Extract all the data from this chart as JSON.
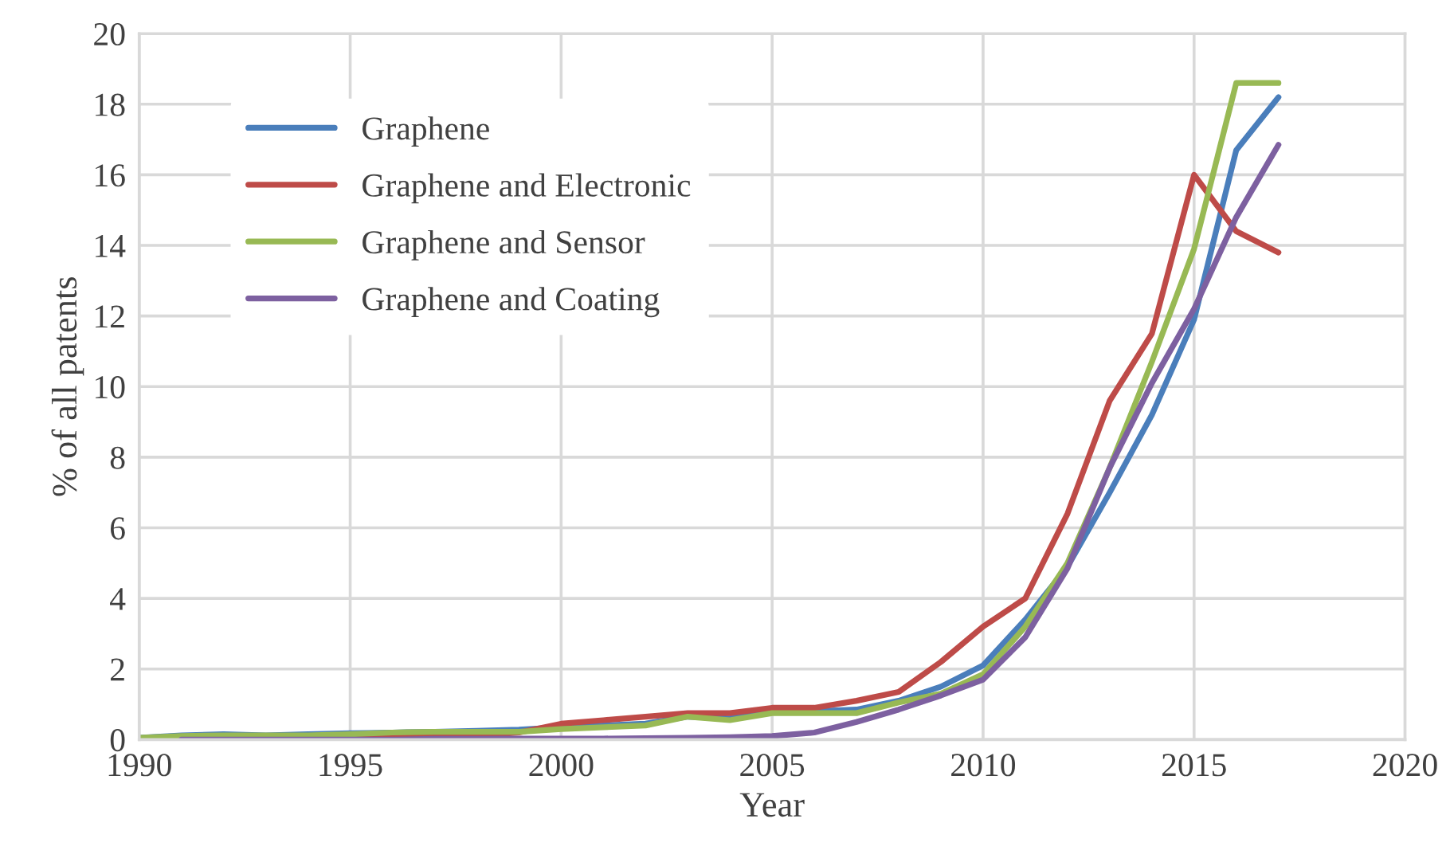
{
  "chart_data": {
    "type": "line",
    "xlabel": "Year",
    "ylabel": "% of all patents",
    "x": [
      1990,
      1991,
      1992,
      1993,
      1994,
      1995,
      1996,
      1997,
      1998,
      1999,
      2000,
      2001,
      2002,
      2003,
      2004,
      2005,
      2006,
      2007,
      2008,
      2009,
      2010,
      2011,
      2012,
      2013,
      2014,
      2015,
      2016,
      2017
    ],
    "series": [
      {
        "name": "Graphene",
        "color": "#4a7ebb",
        "values": [
          0.05,
          0.12,
          0.15,
          0.12,
          0.15,
          0.18,
          0.2,
          0.22,
          0.25,
          0.28,
          0.35,
          0.4,
          0.45,
          0.65,
          0.6,
          0.8,
          0.8,
          0.85,
          1.1,
          1.5,
          2.1,
          3.4,
          4.9,
          7.0,
          9.2,
          11.9,
          16.7,
          18.2
        ]
      },
      {
        "name": "Graphene and Electronic",
        "color": "#be4b48",
        "values": [
          null,
          null,
          null,
          null,
          0.05,
          0.05,
          0.1,
          0.1,
          0.1,
          0.2,
          0.45,
          0.55,
          0.65,
          0.75,
          0.75,
          0.9,
          0.9,
          1.1,
          1.35,
          2.2,
          3.2,
          4.0,
          6.4,
          9.6,
          11.5,
          16.0,
          14.4,
          13.8
        ]
      },
      {
        "name": "Graphene and Sensor",
        "color": "#98b954",
        "values": [
          0.05,
          0.1,
          0.12,
          0.12,
          0.12,
          0.15,
          0.2,
          0.22,
          0.22,
          0.22,
          0.3,
          0.35,
          0.4,
          0.65,
          0.55,
          0.75,
          0.75,
          0.75,
          1.05,
          1.3,
          1.85,
          3.2,
          5.0,
          7.7,
          10.7,
          13.9,
          18.6,
          18.6
        ]
      },
      {
        "name": "Graphene and Coating",
        "color": "#7d60a0",
        "values": [
          null,
          0.0,
          0.0,
          0.0,
          0.0,
          0.0,
          0.0,
          0.02,
          0.02,
          0.03,
          0.03,
          0.03,
          0.04,
          0.05,
          0.07,
          0.1,
          0.2,
          0.5,
          0.85,
          1.25,
          1.7,
          2.9,
          4.85,
          7.7,
          10.1,
          12.2,
          14.8,
          16.85
        ]
      }
    ],
    "xlim": [
      1990,
      2020
    ],
    "xticks": [
      1990,
      1995,
      2000,
      2005,
      2010,
      2015,
      2020
    ],
    "ylim": [
      0,
      20
    ],
    "yticks": [
      0,
      2,
      4,
      6,
      8,
      10,
      12,
      14,
      16,
      18,
      20
    ],
    "grid": true,
    "legend": "top left",
    "line_style": "solid",
    "marker": "none"
  }
}
